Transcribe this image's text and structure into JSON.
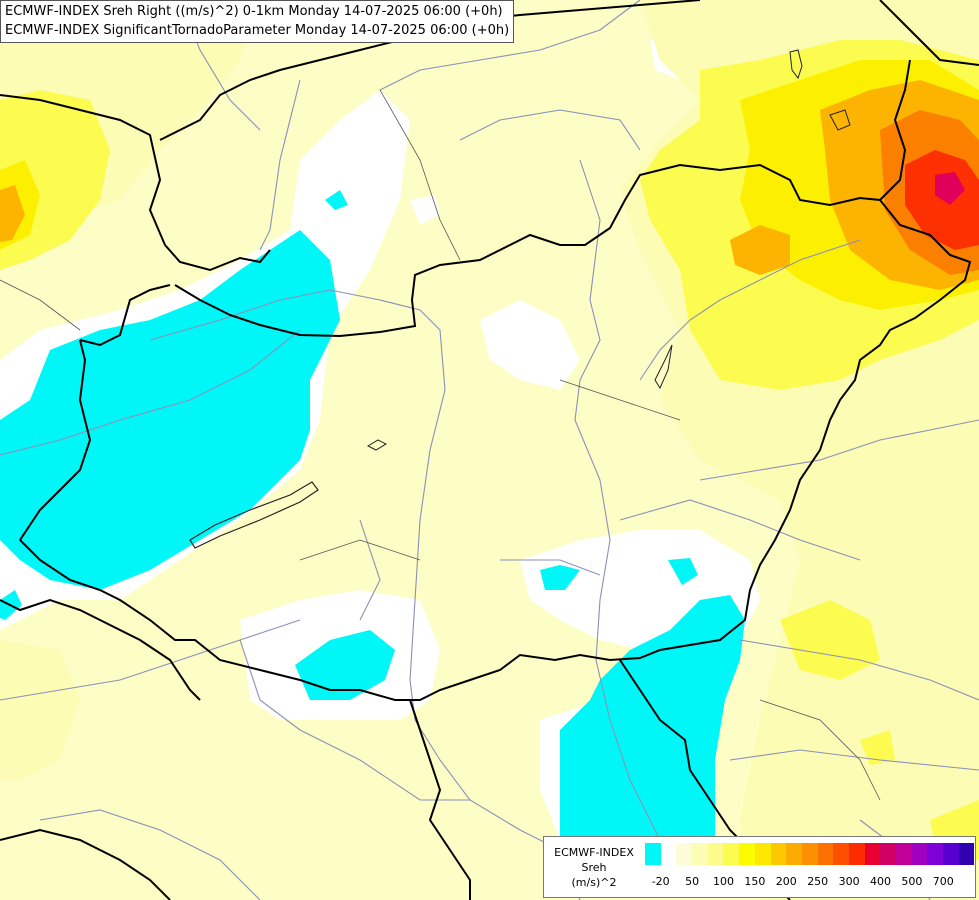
{
  "title": {
    "line1": "ECMWF-INDEX Sreh Right ((m/s)^2) 0-1km Monday 14-07-2025 06:00 (+0h)",
    "line2": "ECMWF-INDEX SignificantTornadoParameter Monday 14-07-2025 06:00 (+0h)"
  },
  "legend": {
    "line1": "ECMWF-INDEX",
    "line2": "Sreh",
    "line3": "(m/s)^2",
    "colors": [
      "#00f7f7",
      "#ffffff",
      "#fcfcd8",
      "#fcfcb4",
      "#fcfc8c",
      "#fcfc50",
      "#fcfc00",
      "#fce800",
      "#fcc800",
      "#fcac00",
      "#fc9000",
      "#fc7000",
      "#fc5000",
      "#fc2c00",
      "#e80030",
      "#d00064",
      "#c00098",
      "#a000c0",
      "#8000d8",
      "#5800d0",
      "#3000b0"
    ],
    "ticks": [
      "-20",
      "50",
      "100",
      "150",
      "200",
      "250",
      "300",
      "400",
      "500",
      "700"
    ]
  },
  "palette": {
    "background": "#fdfdc6",
    "cyan": "#00f7f7",
    "white": "#ffffff",
    "pale_yellow": "#fcfcb4",
    "yellow": "#fcfc50",
    "bright_yellow": "#fcf000",
    "orange": "#fcb400",
    "dark_orange": "#fc8000",
    "red": "#fc3000",
    "magenta": "#e0005c"
  }
}
